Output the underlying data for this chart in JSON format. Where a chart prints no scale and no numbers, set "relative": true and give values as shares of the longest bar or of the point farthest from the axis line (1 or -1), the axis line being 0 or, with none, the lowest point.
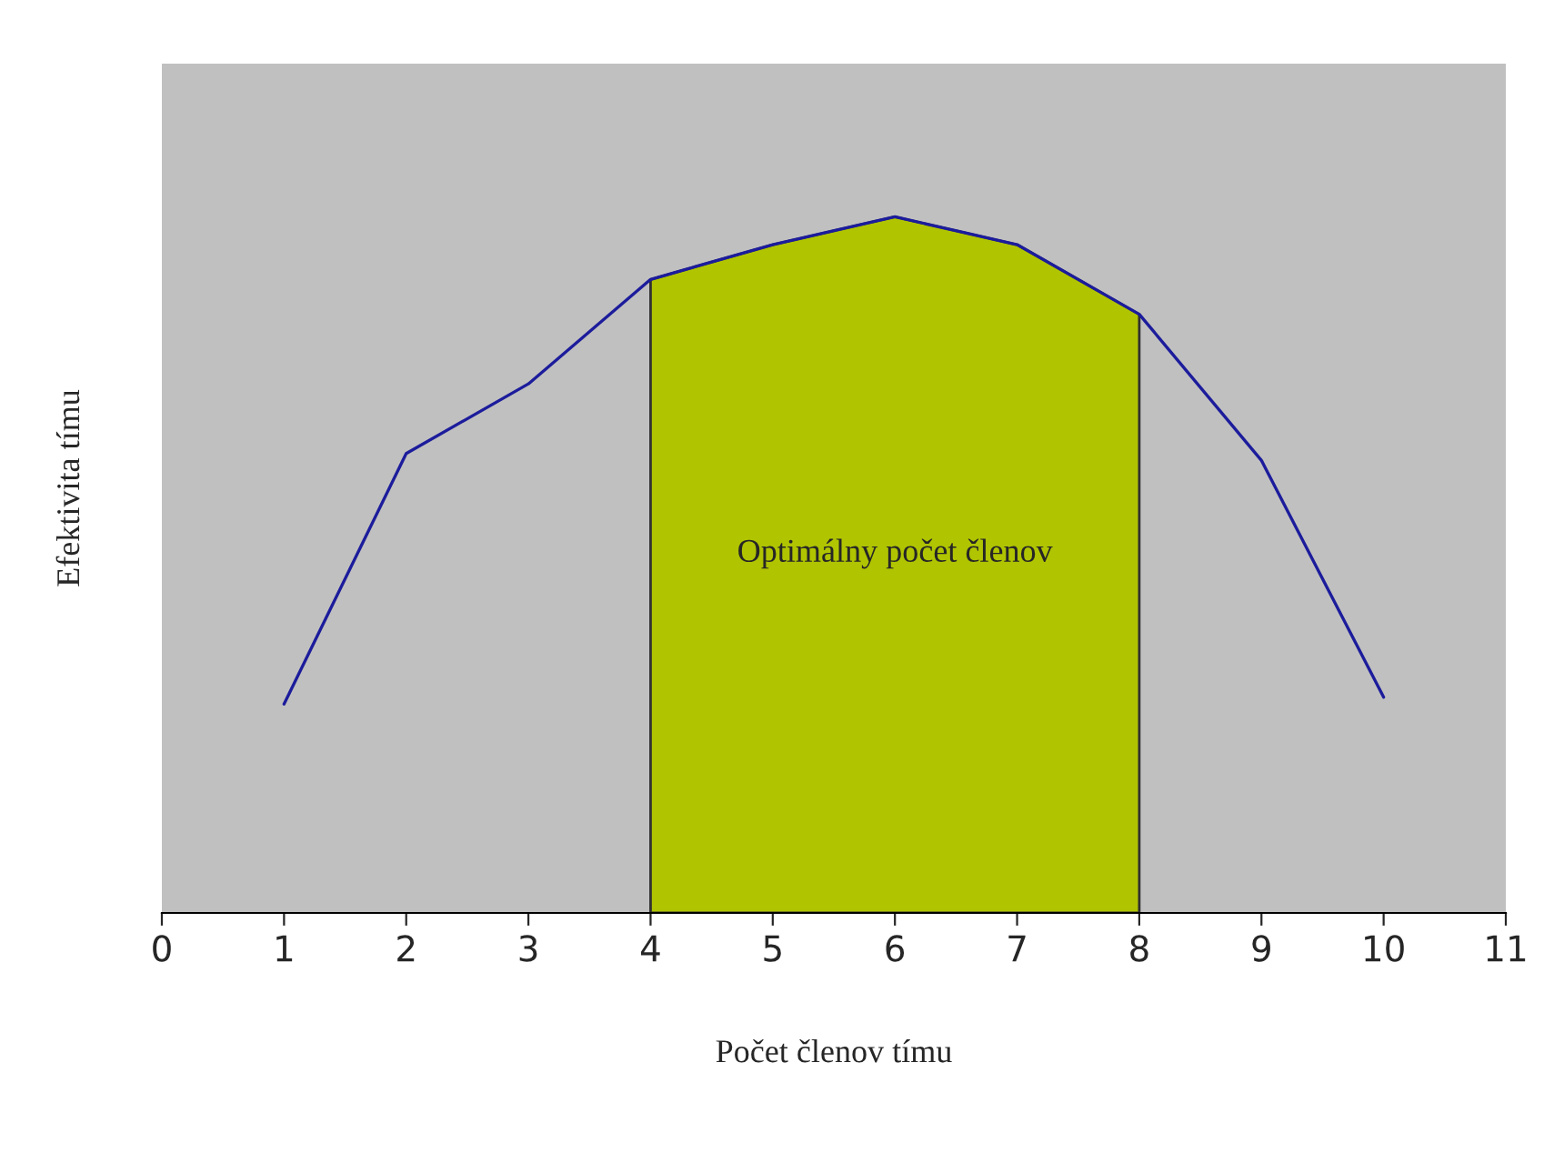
{
  "chart_data": {
    "type": "line",
    "relative": true,
    "xlabel": "Počet členov tímu",
    "ylabel": "Efektivita tímu",
    "xlim": [
      0,
      11
    ],
    "xticks": [
      0,
      1,
      2,
      3,
      4,
      5,
      6,
      7,
      8,
      9,
      10,
      11
    ],
    "tick_labels": "x",
    "grid": false,
    "legend": false,
    "series": [
      {
        "type": "area",
        "color": "#b0c400",
        "x": [
          4,
          5,
          6,
          7,
          8
        ],
        "values": [
          0.91,
          0.96,
          1,
          0.96,
          0.86
        ]
      },
      {
        "color": "#1c1c9c",
        "x": [
          1,
          2,
          3,
          4,
          5,
          6,
          7,
          8,
          9,
          10
        ],
        "values": [
          0.3,
          0.66,
          0.76,
          0.91,
          0.96,
          1,
          0.96,
          0.86,
          0.65,
          0.31
        ]
      }
    ],
    "annotations": [
      "Optimálny počet členov"
    ]
  }
}
